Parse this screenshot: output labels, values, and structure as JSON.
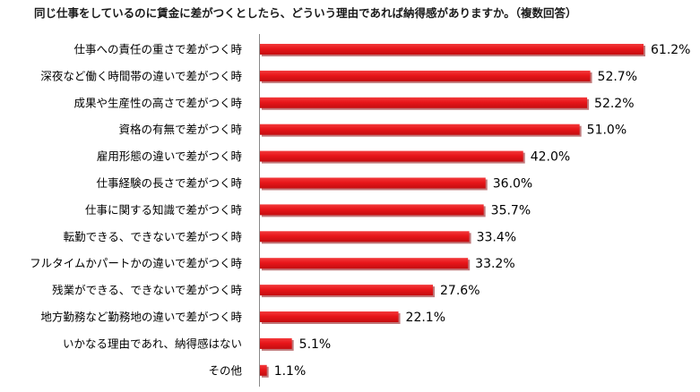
{
  "chart_data": {
    "type": "bar",
    "orientation": "horizontal",
    "title": "同じ仕事をしているのに賃金に差がつくとしたら、どういう理由であれば納得感がありますか。（複数回答）",
    "categories": [
      "仕事への責任の重さで差がつく時",
      "深夜など働く時間帯の違いで差がつく時",
      "成果や生産性の高さで差がつく時",
      "資格の有無で差がつく時",
      "雇用形態の違いで差がつく時",
      "仕事経験の長さで差がつく時",
      "仕事に関する知識で差がつく時",
      "転勤できる、できないで差がつく時",
      "フルタイムかパートかの違いで差がつく時",
      "残業ができる、できないで差がつく時",
      "地方勤務など勤務地の違いで差がつく時",
      "いかなる理由であれ、納得感はない",
      "その他"
    ],
    "values": [
      61.2,
      52.7,
      52.2,
      51.0,
      42.0,
      36.0,
      35.7,
      33.4,
      33.2,
      27.6,
      22.1,
      5.1,
      1.1
    ],
    "value_labels": [
      "61.2%",
      "52.7%",
      "52.2%",
      "51.0%",
      "42.0%",
      "36.0%",
      "35.7%",
      "33.4%",
      "33.2%",
      "27.6%",
      "22.1%",
      "5.1%",
      "1.1%"
    ],
    "unit": "%",
    "xlabel": "",
    "ylabel": "",
    "xlim": [
      0,
      61.2
    ],
    "grid": false,
    "legend": "none",
    "bar_color": "#e8161a",
    "bar_shadow_color": "#8c0a0c"
  }
}
